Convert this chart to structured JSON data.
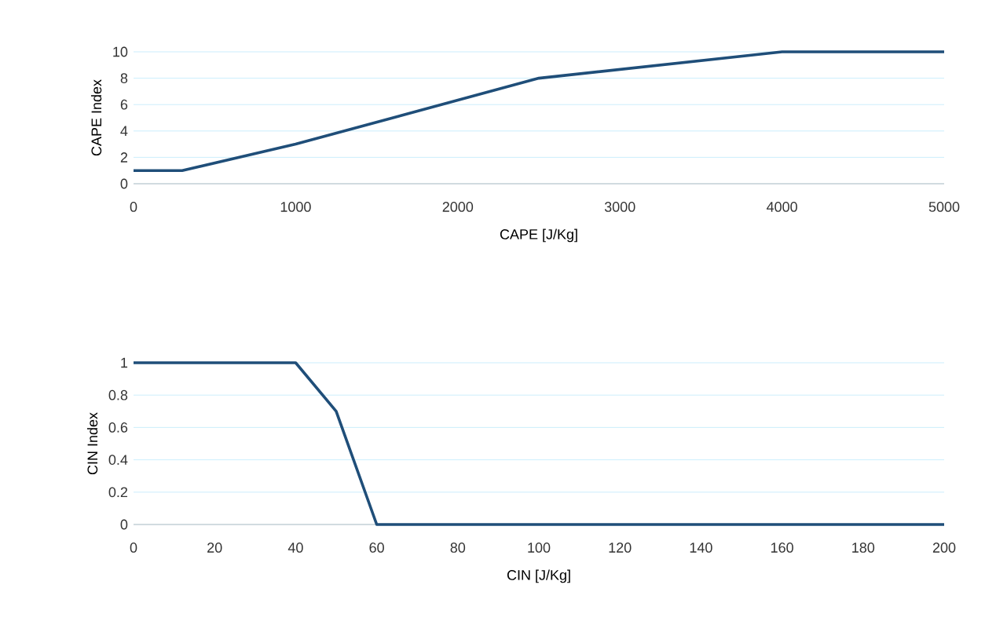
{
  "chart_data": [
    {
      "type": "line",
      "xlabel": "CAPE [J/Kg]",
      "ylabel": "CAPE Index",
      "x": [
        0,
        300,
        1000,
        2500,
        4000,
        5000
      ],
      "series": [
        {
          "color": "#1f4e79",
          "values": [
            1,
            1,
            3,
            8,
            10,
            10
          ]
        }
      ],
      "xlim": [
        0,
        5000
      ],
      "ylim": [
        0,
        10
      ],
      "xticks": [
        0,
        1000,
        2000,
        3000,
        4000,
        5000
      ],
      "yticks": [
        0,
        2,
        4,
        6,
        8,
        10
      ],
      "grid": "y"
    },
    {
      "type": "line",
      "xlabel": "CIN [J/Kg]",
      "ylabel": "CIN Index",
      "x": [
        0,
        40,
        50,
        60,
        200
      ],
      "series": [
        {
          "color": "#1f4e79",
          "values": [
            1,
            1,
            0.7,
            0,
            0
          ]
        }
      ],
      "xlim": [
        0,
        200
      ],
      "ylim": [
        0,
        1
      ],
      "xticks": [
        0,
        20,
        40,
        60,
        80,
        100,
        120,
        140,
        160,
        180,
        200
      ],
      "yticks": [
        0,
        0.2,
        0.4,
        0.6,
        0.8,
        1
      ],
      "grid": "y"
    }
  ]
}
